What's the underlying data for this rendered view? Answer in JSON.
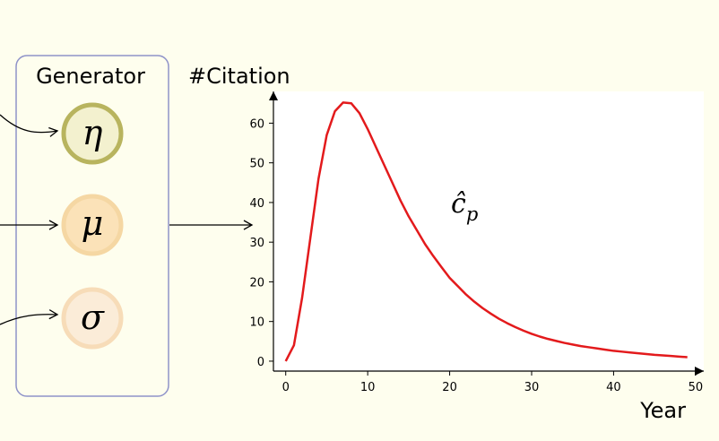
{
  "generator": {
    "title": "Generator",
    "params": [
      {
        "symbol": "η",
        "fill": "#f3f1cf",
        "stroke": "#b8b45e"
      },
      {
        "symbol": "μ",
        "fill": "#fbe2b8",
        "stroke": "#f5d7a3"
      },
      {
        "symbol": "σ",
        "fill": "#fbecd8",
        "stroke": "#f7dcb8"
      }
    ]
  },
  "curve_label": "ĉp",
  "colors": {
    "background": "#fefeee",
    "box_border": "#8f93c9",
    "curve": "#e31a1c"
  },
  "chart_data": {
    "type": "line",
    "ylabel": "#Citation",
    "xlabel": "Year",
    "xlim": [
      -1.5,
      51
    ],
    "ylim": [
      -2.5,
      68
    ],
    "xticks": [
      0,
      10,
      20,
      30,
      40,
      50
    ],
    "yticks": [
      0,
      10,
      20,
      30,
      40,
      50,
      60
    ],
    "series": [
      {
        "x": [
          0,
          1,
          2,
          3,
          4,
          5,
          6,
          7,
          8,
          9,
          10,
          11,
          12,
          13,
          14,
          15,
          16,
          17,
          18,
          19,
          20,
          21,
          22,
          23,
          24,
          25,
          26,
          27,
          28,
          29,
          30,
          31,
          32,
          33,
          34,
          35,
          36,
          37,
          38,
          39,
          40,
          41,
          42,
          43,
          44,
          45,
          46,
          47,
          48,
          49
        ],
        "values": [
          0,
          4,
          16,
          31,
          46,
          57,
          63,
          65.2,
          65,
          62.5,
          58.5,
          54,
          49.5,
          45,
          40.5,
          36.5,
          33,
          29.5,
          26.5,
          23.7,
          21,
          18.9,
          16.8,
          15,
          13.4,
          12,
          10.7,
          9.6,
          8.6,
          7.7,
          6.9,
          6.2,
          5.6,
          5.1,
          4.6,
          4.2,
          3.8,
          3.5,
          3.2,
          2.9,
          2.6,
          2.4,
          2.2,
          2.0,
          1.8,
          1.6,
          1.45,
          1.3,
          1.15,
          1.0
        ]
      }
    ]
  }
}
